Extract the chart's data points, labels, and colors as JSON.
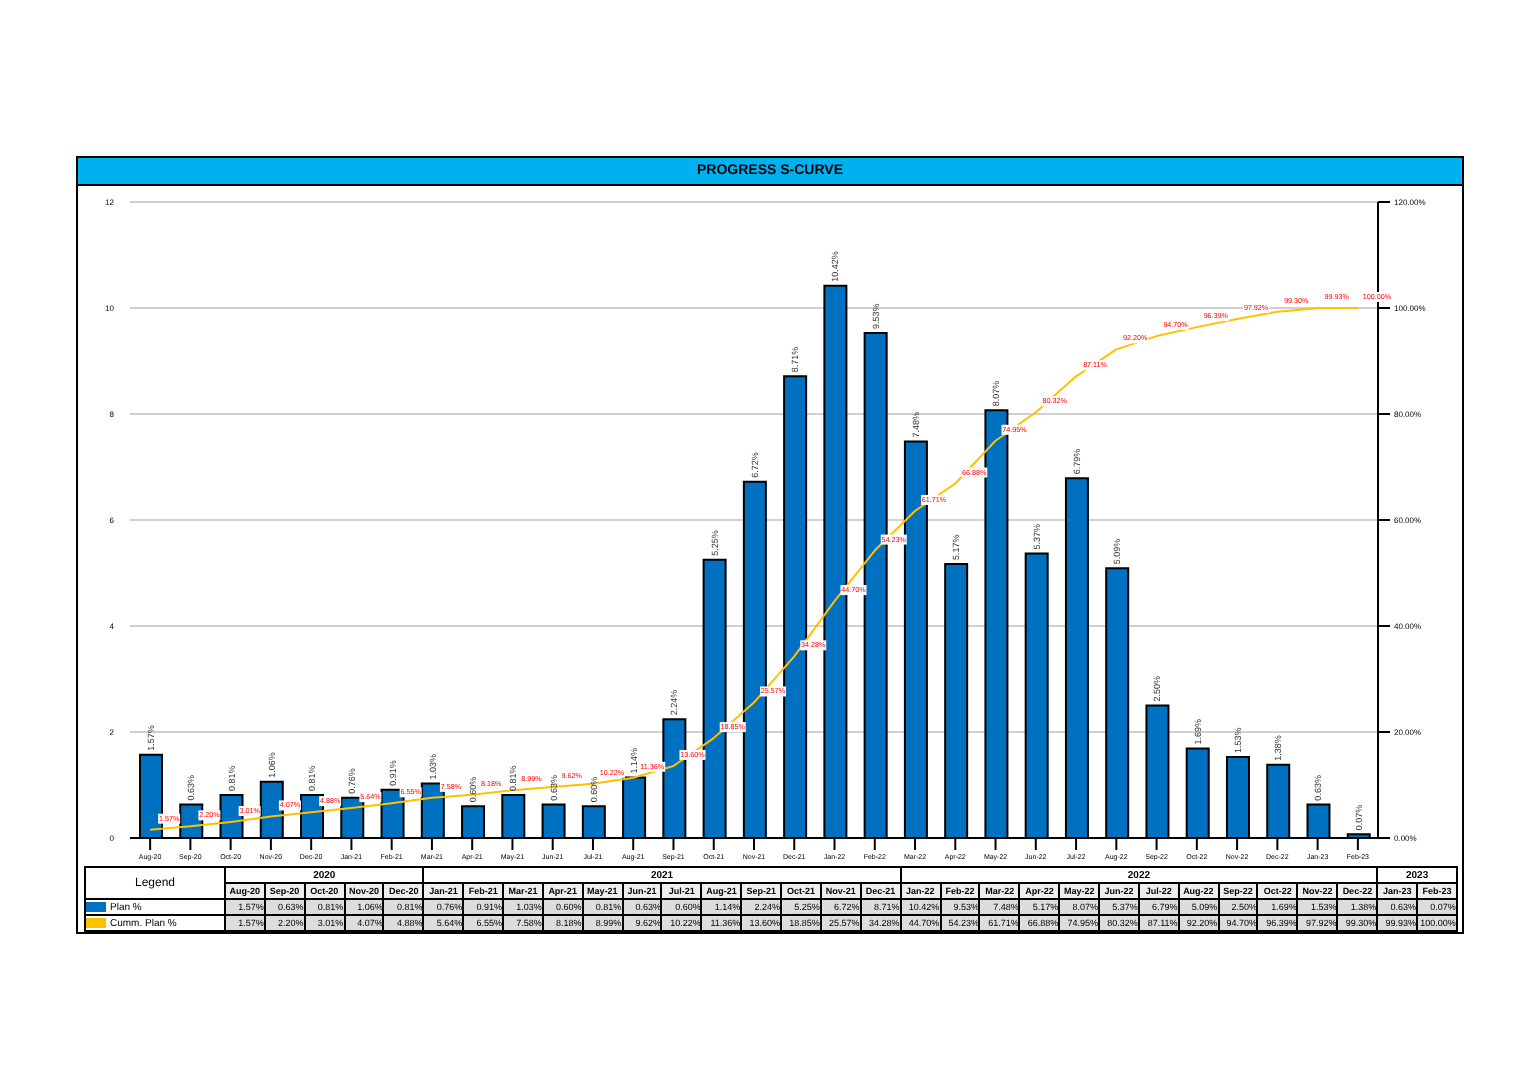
{
  "chart_data": {
    "type": "bar",
    "title": "PROGRESS S-CURVE",
    "legend_title": "Legend",
    "categories": [
      "Aug-20",
      "Sep-20",
      "Oct-20",
      "Nov-20",
      "Dec-20",
      "Jan-21",
      "Feb-21",
      "Mar-21",
      "Apr-21",
      "May-21",
      "Jun-21",
      "Jul-21",
      "Aug-21",
      "Sep-21",
      "Oct-21",
      "Nov-21",
      "Dec-21",
      "Jan-22",
      "Feb-22",
      "Mar-22",
      "Apr-22",
      "May-22",
      "Jun-22",
      "Jul-22",
      "Aug-22",
      "Sep-22",
      "Oct-22",
      "Nov-22",
      "Dec-22",
      "Jan-23",
      "Feb-23"
    ],
    "annotations": [
      "2020",
      "2021",
      "2022",
      "2023"
    ],
    "series": [
      {
        "name": "Plan %",
        "type": "bar",
        "color": "#0070c0",
        "values": [
          1.57,
          0.63,
          0.81,
          1.06,
          0.81,
          0.76,
          0.91,
          1.03,
          0.6,
          0.81,
          0.63,
          0.6,
          1.14,
          2.24,
          5.25,
          6.72,
          8.71,
          10.42,
          9.53,
          7.48,
          5.17,
          8.07,
          5.37,
          6.79,
          5.09,
          2.5,
          1.69,
          1.53,
          1.38,
          0.63,
          0.07
        ],
        "value_labels": [
          "1.57%",
          "0.63%",
          "0.81%",
          "1.06%",
          "0.81%",
          "0.76%",
          "0.91%",
          "1.03%",
          "0.60%",
          "0.81%",
          "0.63%",
          "0.60%",
          "1.14%",
          "2.24%",
          "5.25%",
          "6.72%",
          "8.71%",
          "10.42%",
          "9.53%",
          "7.48%",
          "5.17%",
          "8.07%",
          "5.37%",
          "6.79%",
          "5.09%",
          "2.50%",
          "1.69%",
          "1.53%",
          "1.38%",
          "0.63%",
          "0.07%"
        ]
      },
      {
        "name": "Cumm. Plan %",
        "type": "line",
        "axis": "y2",
        "color": "#ffc000",
        "values": [
          1.57,
          2.2,
          3.01,
          4.07,
          4.88,
          5.64,
          6.55,
          7.58,
          8.18,
          8.99,
          9.62,
          10.22,
          11.36,
          13.6,
          18.85,
          25.57,
          34.28,
          44.7,
          54.23,
          61.71,
          66.88,
          74.95,
          80.32,
          87.11,
          92.2,
          94.7,
          96.39,
          97.92,
          99.3,
          99.93,
          100
        ],
        "value_labels": [
          "1.57%",
          "2.20%",
          "3.01%",
          "4.07%",
          "4.88%",
          "5.64%",
          "6.55%",
          "7.58%",
          "8.18%",
          "8.99%",
          "9.62%",
          "10.22%",
          "11.36%",
          "13.60%",
          "18.85%",
          "25.57%",
          "34.28%",
          "44.70%",
          "54.23%",
          "61.71%",
          "66.88%",
          "74.95%",
          "80.32%",
          "87.11%",
          "92.20%",
          "94.70%",
          "96.39%",
          "97.92%",
          "99.30%",
          "99.93%",
          "100.00%"
        ]
      }
    ],
    "ylim": [
      0,
      12
    ],
    "yticks": [
      0,
      2,
      4,
      6,
      8,
      10,
      12
    ],
    "y2lim": [
      0,
      120
    ],
    "y2ticks": [
      {
        "value": 0,
        "label": "0.00%"
      },
      {
        "value": 20,
        "label": "20.00%"
      },
      {
        "value": 40,
        "label": "40.00%"
      },
      {
        "value": 60,
        "label": "60.00%"
      },
      {
        "value": 80,
        "label": "80.00%"
      },
      {
        "value": 100,
        "label": "100.00%"
      },
      {
        "value": 120,
        "label": "120.00%"
      }
    ],
    "grid": "y",
    "legend": "bottom",
    "marker": "none",
    "line_style": "solid"
  }
}
